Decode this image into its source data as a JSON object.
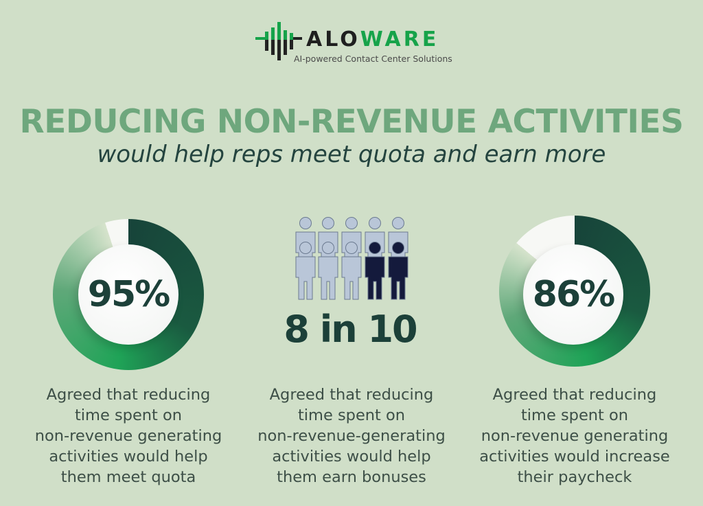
{
  "logo": {
    "word_dark": "ALO",
    "word_green": "WARE",
    "tagline": "AI-powered Contact Center Solutions"
  },
  "header": {
    "title": "REDUCING NON-REVENUE ACTIVITIES",
    "subtitle": "would help reps meet quota and earn more"
  },
  "stats": [
    {
      "value": "95%",
      "percent": 95,
      "caption": [
        "Agreed that reducing",
        "time spent on",
        "non-revenue generating",
        "activities would help",
        "them meet quota"
      ]
    },
    {
      "value": "8 in 10",
      "highlighted": 2,
      "total": 10,
      "caption": [
        "Agreed that reducing",
        "time spent on",
        "non-revenue-generating",
        "activities would help",
        "them earn bonuses"
      ]
    },
    {
      "value": "86%",
      "percent": 86,
      "caption": [
        "Agreed that reducing",
        "time spent on",
        "non-revenue generating",
        "activities would increase",
        "their paycheck"
      ]
    }
  ],
  "colors": {
    "background": "#d0dfc8",
    "title": "#6ea77d",
    "dark": "#1c4039",
    "green": "#16a34a",
    "person_light": "#b9c6d8",
    "person_dark": "#141a3c"
  }
}
